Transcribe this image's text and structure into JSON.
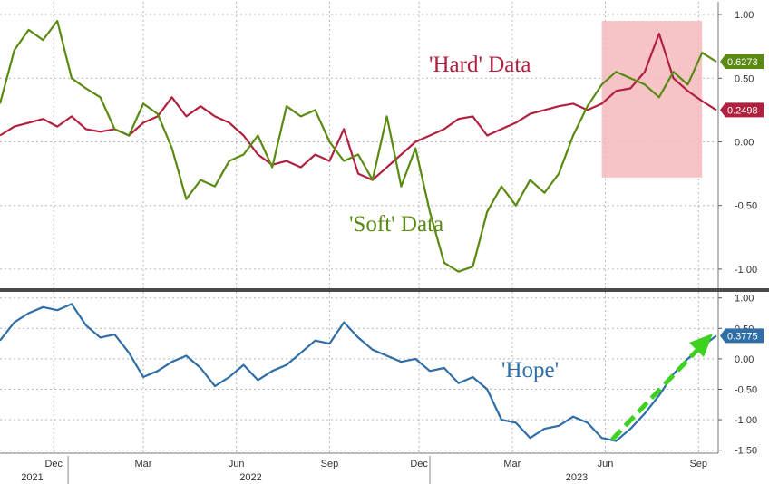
{
  "colors": {
    "hard": "#b0213f",
    "soft": "#5a8a12",
    "hope": "#2f6ea6",
    "highlight": "#f4b8bd",
    "arrow": "#3cd21f",
    "grid": "#b8b8b8"
  },
  "chart_data": [
    {
      "type": "line",
      "panel": "top",
      "ylim": [
        -1.15,
        1.1
      ],
      "yticks": [
        "1.00",
        "0.50",
        "0.00",
        "-0.50",
        "-1.00"
      ],
      "ytick_values": [
        1.0,
        0.5,
        0.0,
        -0.5,
        -1.0
      ],
      "grid": true,
      "series": [
        {
          "name": "'Hard' Data",
          "last_value": "0.2498",
          "color": "#b0213f",
          "x": [
            0,
            0.02,
            0.04,
            0.06,
            0.08,
            0.1,
            0.12,
            0.14,
            0.16,
            0.18,
            0.2,
            0.22,
            0.24,
            0.26,
            0.28,
            0.3,
            0.32,
            0.34,
            0.36,
            0.38,
            0.4,
            0.42,
            0.44,
            0.46,
            0.48,
            0.5,
            0.52,
            0.54,
            0.56,
            0.58,
            0.6,
            0.62,
            0.64,
            0.66,
            0.68,
            0.7,
            0.72,
            0.74,
            0.76,
            0.78,
            0.8,
            0.82,
            0.84,
            0.86,
            0.88,
            0.9,
            0.92,
            0.94,
            0.96,
            0.98,
            1.0
          ],
          "values": [
            0.05,
            0.12,
            0.15,
            0.18,
            0.12,
            0.2,
            0.1,
            0.08,
            0.1,
            0.05,
            0.15,
            0.2,
            0.35,
            0.2,
            0.28,
            0.2,
            0.15,
            0.05,
            -0.1,
            -0.18,
            -0.15,
            -0.2,
            -0.1,
            -0.15,
            0.1,
            -0.25,
            -0.3,
            -0.2,
            -0.1,
            0.0,
            0.05,
            0.1,
            0.18,
            0.2,
            0.05,
            0.1,
            0.15,
            0.22,
            0.25,
            0.28,
            0.3,
            0.25,
            0.3,
            0.4,
            0.42,
            0.55,
            0.85,
            0.5,
            0.4,
            0.32,
            0.25
          ]
        },
        {
          "name": "'Soft' Data",
          "last_value": "0.6273",
          "color": "#5a8a12",
          "x": [
            0,
            0.02,
            0.04,
            0.06,
            0.08,
            0.1,
            0.12,
            0.14,
            0.16,
            0.18,
            0.2,
            0.22,
            0.24,
            0.26,
            0.28,
            0.3,
            0.32,
            0.34,
            0.36,
            0.38,
            0.4,
            0.42,
            0.44,
            0.46,
            0.48,
            0.5,
            0.52,
            0.54,
            0.56,
            0.58,
            0.6,
            0.62,
            0.64,
            0.66,
            0.68,
            0.7,
            0.72,
            0.74,
            0.76,
            0.78,
            0.8,
            0.82,
            0.84,
            0.86,
            0.88,
            0.9,
            0.92,
            0.94,
            0.96,
            0.98,
            1.0
          ],
          "values": [
            0.3,
            0.72,
            0.88,
            0.8,
            0.95,
            0.5,
            0.42,
            0.35,
            0.1,
            0.05,
            0.3,
            0.22,
            -0.05,
            -0.45,
            -0.3,
            -0.35,
            -0.15,
            -0.1,
            0.05,
            -0.2,
            0.28,
            0.2,
            0.25,
            0.0,
            -0.15,
            -0.1,
            -0.3,
            0.2,
            -0.35,
            -0.05,
            -0.55,
            -0.95,
            -1.02,
            -0.98,
            -0.55,
            -0.35,
            -0.5,
            -0.3,
            -0.4,
            -0.25,
            0.05,
            0.28,
            0.45,
            0.55,
            0.5,
            0.45,
            0.35,
            0.55,
            0.45,
            0.7,
            0.63
          ]
        }
      ],
      "highlight_box": {
        "x0": 0.84,
        "x1": 0.98,
        "y0": -0.28,
        "y1": 0.95
      }
    },
    {
      "type": "line",
      "panel": "bottom",
      "ylim": [
        -1.55,
        1.1
      ],
      "yticks": [
        "1.00",
        "0.50",
        "0.00",
        "-0.50",
        "-1.00",
        "-1.50"
      ],
      "ytick_values": [
        1.0,
        0.5,
        0.0,
        -0.5,
        -1.0,
        -1.5
      ],
      "grid": true,
      "series": [
        {
          "name": "'Hope'",
          "last_value": "0.3775",
          "color": "#2f6ea6",
          "x": [
            0,
            0.02,
            0.04,
            0.06,
            0.08,
            0.1,
            0.12,
            0.14,
            0.16,
            0.18,
            0.2,
            0.22,
            0.24,
            0.26,
            0.28,
            0.3,
            0.32,
            0.34,
            0.36,
            0.38,
            0.4,
            0.42,
            0.44,
            0.46,
            0.48,
            0.5,
            0.52,
            0.54,
            0.56,
            0.58,
            0.6,
            0.62,
            0.64,
            0.66,
            0.68,
            0.7,
            0.72,
            0.74,
            0.76,
            0.78,
            0.8,
            0.82,
            0.84,
            0.86,
            0.88,
            0.9,
            0.92,
            0.94,
            0.96,
            0.98,
            1.0
          ],
          "values": [
            0.3,
            0.6,
            0.75,
            0.85,
            0.8,
            0.9,
            0.55,
            0.35,
            0.4,
            0.1,
            -0.3,
            -0.2,
            -0.05,
            0.05,
            -0.15,
            -0.45,
            -0.3,
            -0.1,
            -0.35,
            -0.2,
            -0.1,
            0.1,
            0.3,
            0.25,
            0.6,
            0.35,
            0.15,
            0.05,
            -0.05,
            0.0,
            -0.2,
            -0.15,
            -0.4,
            -0.3,
            -0.5,
            -1.0,
            -1.05,
            -1.3,
            -1.15,
            -1.1,
            -0.95,
            -1.05,
            -1.3,
            -1.35,
            -1.15,
            -0.9,
            -0.6,
            -0.25,
            0.0,
            0.2,
            0.38
          ]
        }
      ]
    }
  ],
  "x_axis": {
    "month_labels": [
      {
        "label": "Dec",
        "pos": 0.075
      },
      {
        "label": "Mar",
        "pos": 0.2
      },
      {
        "label": "Jun",
        "pos": 0.33
      },
      {
        "label": "Sep",
        "pos": 0.46
      },
      {
        "label": "Dec",
        "pos": 0.585
      },
      {
        "label": "Mar",
        "pos": 0.715
      },
      {
        "label": "Jun",
        "pos": 0.845
      },
      {
        "label": "Sep",
        "pos": 0.975
      }
    ],
    "year_labels": [
      {
        "label": "2021",
        "pos": 0.045
      },
      {
        "label": "2022",
        "pos": 0.35
      },
      {
        "label": "2023",
        "pos": 0.805
      }
    ],
    "year_dividers": [
      0.095,
      0.6
    ]
  },
  "labels": {
    "hard": "'Hard' Data",
    "soft": "'Soft' Data",
    "hope": "'Hope'"
  }
}
